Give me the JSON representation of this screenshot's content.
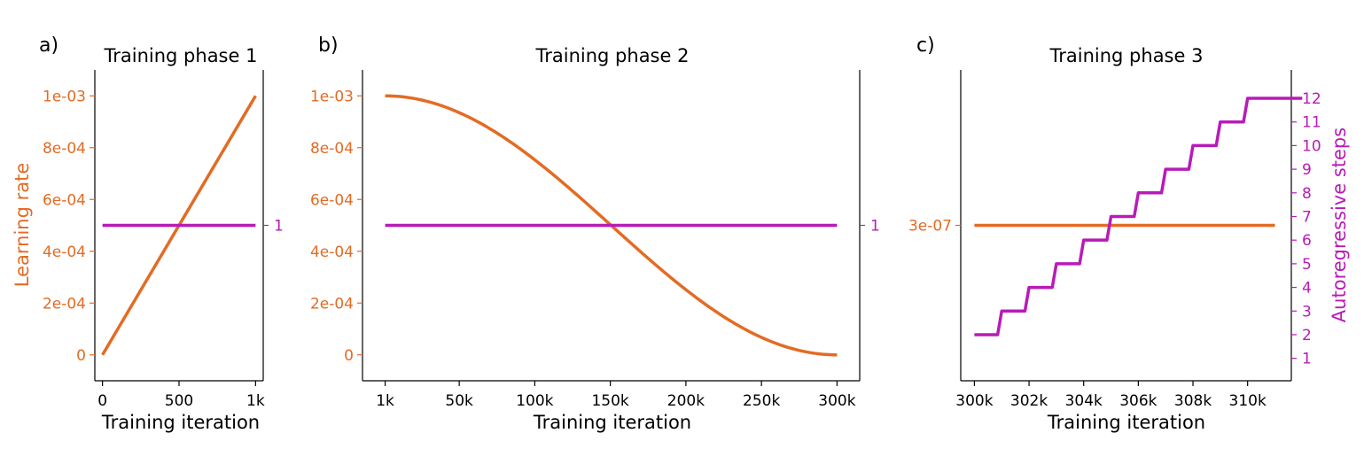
{
  "colors": {
    "lr": "#e36b24",
    "steps": "#b81bb8",
    "axis": "#000000"
  },
  "chart_data": [
    {
      "type": "line",
      "panel_label": "a)",
      "title": "Training phase 1",
      "xlabel": "Training iteration",
      "ylabel_left": "Learning rate",
      "ylabel_right": "",
      "xlim": [
        -50,
        1050
      ],
      "ylim_left": [
        -0.0001,
        0.0011
      ],
      "ylim_right": [
        0.7,
        1.3
      ],
      "x_ticks": [
        0,
        500,
        1000
      ],
      "x_tick_labels": [
        "0",
        "500",
        "1k"
      ],
      "y_left_ticks": [
        0,
        0.0002,
        0.0004,
        0.0006,
        0.0008,
        0.001
      ],
      "y_left_tick_labels": [
        "0",
        "2e-04",
        "4e-04",
        "6e-04",
        "8e-04",
        "1e-03"
      ],
      "y_right_ticks": [
        1
      ],
      "y_right_tick_labels": [
        "1"
      ],
      "series": [
        {
          "name": "Learning rate",
          "axis": "left",
          "shape": "linear",
          "x": [
            0,
            1000
          ],
          "y": [
            0,
            0.001
          ]
        },
        {
          "name": "Autoregressive steps",
          "axis": "right",
          "shape": "linear",
          "x": [
            0,
            1000
          ],
          "y": [
            1,
            1
          ]
        }
      ]
    },
    {
      "type": "line",
      "panel_label": "b)",
      "title": "Training phase 2",
      "xlabel": "Training iteration",
      "ylabel_left": "",
      "ylabel_right": "",
      "xlim": [
        -14000,
        315000
      ],
      "ylim_left": [
        -0.0001,
        0.0011
      ],
      "ylim_right": [
        0.7,
        1.3
      ],
      "x_ticks": [
        1000,
        50000,
        100000,
        150000,
        200000,
        250000,
        300000
      ],
      "x_tick_labels": [
        "1k",
        "50k",
        "100k",
        "150k",
        "200k",
        "250k",
        "300k"
      ],
      "y_left_ticks": [
        0,
        0.0002,
        0.0004,
        0.0006,
        0.0008,
        0.001
      ],
      "y_left_tick_labels": [
        "0",
        "2e-04",
        "4e-04",
        "6e-04",
        "8e-04",
        "1e-03"
      ],
      "y_right_ticks": [
        1
      ],
      "y_right_tick_labels": [
        "1"
      ],
      "series": [
        {
          "name": "Learning rate",
          "axis": "left",
          "shape": "cosine",
          "x": [
            1000,
            300000
          ],
          "y": [
            0.001,
            0
          ]
        },
        {
          "name": "Autoregressive steps",
          "axis": "right",
          "shape": "linear",
          "x": [
            1000,
            300000
          ],
          "y": [
            1,
            1
          ]
        }
      ]
    },
    {
      "type": "line",
      "panel_label": "c)",
      "title": "Training phase 3",
      "xlabel": "Training iteration",
      "ylabel_left": "",
      "ylabel_right": "Autoregressive steps",
      "xlim": [
        299500,
        311600
      ],
      "ylim_left": [
        0,
        6e-07
      ],
      "ylim_right": [
        0.05,
        13.2
      ],
      "x_ticks": [
        300000,
        302000,
        304000,
        306000,
        308000,
        310000
      ],
      "x_tick_labels": [
        "300k",
        "302k",
        "304k",
        "306k",
        "308k",
        "310k"
      ],
      "y_left_ticks": [
        3e-07
      ],
      "y_left_tick_labels": [
        "3e-07"
      ],
      "y_right_ticks": [
        1,
        2,
        3,
        4,
        5,
        6,
        7,
        8,
        9,
        10,
        11,
        12
      ],
      "y_right_tick_labels": [
        "1",
        "2",
        "3",
        "4",
        "5",
        "6",
        "7",
        "8",
        "9",
        "10",
        "11",
        "12"
      ],
      "series": [
        {
          "name": "Learning rate",
          "axis": "left",
          "shape": "linear",
          "x": [
            300000,
            311000
          ],
          "y": [
            3e-07,
            3e-07
          ]
        },
        {
          "name": "Autoregressive steps",
          "axis": "right",
          "shape": "staircase",
          "x_steps": [
            300000,
            301000,
            302000,
            303000,
            304000,
            305000,
            306000,
            307000,
            308000,
            309000,
            310000,
            311000
          ],
          "y_steps": [
            2,
            3,
            4,
            5,
            6,
            7,
            8,
            9,
            10,
            11,
            12,
            12
          ]
        }
      ]
    }
  ]
}
